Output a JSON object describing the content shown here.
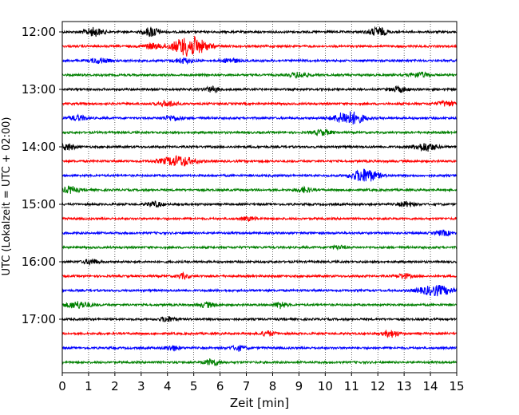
{
  "chart_data": {
    "type": "line",
    "title": "",
    "xlabel": "Zeit  [min]",
    "ylabel": "UTC (Lokalzeit = UTC + 02:00)",
    "xlim": [
      0,
      15
    ],
    "x_ticks": [
      "0",
      "1",
      "2",
      "3",
      "4",
      "5",
      "6",
      "7",
      "8",
      "9",
      "10",
      "11",
      "12",
      "13",
      "14",
      "15"
    ],
    "y_ticks": [
      "12:00",
      "13:00",
      "14:00",
      "15:00",
      "16:00",
      "17:00"
    ],
    "grid": "vertical-dotted",
    "colors": [
      "#000000",
      "#ff0000",
      "#0000ff",
      "#008000"
    ],
    "series": [
      {
        "start": "12:00",
        "color": "#000000",
        "bursts": [
          {
            "t": 1.2,
            "a": 5,
            "w": 0.5
          },
          {
            "t": 3.4,
            "a": 6,
            "w": 0.4
          },
          {
            "t": 12.0,
            "a": 5,
            "w": 0.5
          }
        ]
      },
      {
        "start": "12:15",
        "color": "#ff0000",
        "bursts": [
          {
            "t": 4.85,
            "a": 12,
            "w": 0.9
          },
          {
            "t": 3.4,
            "a": 3,
            "w": 0.5
          }
        ]
      },
      {
        "start": "12:30",
        "color": "#0000ff",
        "bursts": [
          {
            "t": 1.4,
            "a": 3,
            "w": 0.5
          },
          {
            "t": 4.6,
            "a": 3,
            "w": 0.5
          },
          {
            "t": 6.4,
            "a": 3,
            "w": 0.4
          }
        ]
      },
      {
        "start": "12:45",
        "color": "#008000",
        "bursts": [
          {
            "t": 9.0,
            "a": 3,
            "w": 0.5
          },
          {
            "t": 13.6,
            "a": 3,
            "w": 0.5
          }
        ]
      },
      {
        "start": "13:00",
        "color": "#000000",
        "bursts": [
          {
            "t": 5.7,
            "a": 3,
            "w": 0.4
          },
          {
            "t": 12.8,
            "a": 3,
            "w": 0.5
          }
        ]
      },
      {
        "start": "13:15",
        "color": "#ff0000",
        "bursts": [
          {
            "t": 4.0,
            "a": 3,
            "w": 0.5
          },
          {
            "t": 14.6,
            "a": 3,
            "w": 0.5
          }
        ]
      },
      {
        "start": "13:30",
        "color": "#0000ff",
        "bursts": [
          {
            "t": 10.9,
            "a": 8,
            "w": 0.8
          },
          {
            "t": 0.6,
            "a": 3,
            "w": 0.5
          },
          {
            "t": 4.2,
            "a": 3,
            "w": 0.5
          }
        ]
      },
      {
        "start": "13:45",
        "color": "#008000",
        "bursts": [
          {
            "t": 9.9,
            "a": 3,
            "w": 0.5
          }
        ]
      },
      {
        "start": "14:00",
        "color": "#000000",
        "bursts": [
          {
            "t": 0.2,
            "a": 4,
            "w": 0.4
          },
          {
            "t": 13.8,
            "a": 5,
            "w": 0.6
          }
        ]
      },
      {
        "start": "14:15",
        "color": "#ff0000",
        "bursts": [
          {
            "t": 4.4,
            "a": 6,
            "w": 0.9
          }
        ]
      },
      {
        "start": "14:30",
        "color": "#0000ff",
        "bursts": [
          {
            "t": 11.5,
            "a": 8,
            "w": 0.7
          }
        ]
      },
      {
        "start": "14:45",
        "color": "#008000",
        "bursts": [
          {
            "t": 0.3,
            "a": 4,
            "w": 0.4
          },
          {
            "t": 9.2,
            "a": 3,
            "w": 0.4
          }
        ]
      },
      {
        "start": "15:00",
        "color": "#000000",
        "bursts": [
          {
            "t": 3.5,
            "a": 3,
            "w": 0.4
          },
          {
            "t": 13.1,
            "a": 3,
            "w": 0.4
          }
        ]
      },
      {
        "start": "15:15",
        "color": "#ff0000",
        "bursts": [
          {
            "t": 7.1,
            "a": 2,
            "w": 0.4
          }
        ]
      },
      {
        "start": "15:30",
        "color": "#0000ff",
        "bursts": [
          {
            "t": 14.5,
            "a": 3,
            "w": 0.4
          }
        ]
      },
      {
        "start": "15:45",
        "color": "#008000",
        "bursts": [
          {
            "t": 10.5,
            "a": 2,
            "w": 0.4
          }
        ]
      },
      {
        "start": "16:00",
        "color": "#000000",
        "bursts": [
          {
            "t": 1.1,
            "a": 3,
            "w": 0.4
          }
        ]
      },
      {
        "start": "16:15",
        "color": "#ff0000",
        "bursts": [
          {
            "t": 4.6,
            "a": 3,
            "w": 0.3
          },
          {
            "t": 13.0,
            "a": 3,
            "w": 0.4
          }
        ]
      },
      {
        "start": "16:30",
        "color": "#0000ff",
        "bursts": [
          {
            "t": 14.2,
            "a": 6,
            "w": 0.9
          }
        ]
      },
      {
        "start": "16:45",
        "color": "#008000",
        "bursts": [
          {
            "t": 0.6,
            "a": 4,
            "w": 0.7
          },
          {
            "t": 5.5,
            "a": 3,
            "w": 0.4
          },
          {
            "t": 8.3,
            "a": 4,
            "w": 0.3
          }
        ]
      },
      {
        "start": "17:00",
        "color": "#000000",
        "bursts": [
          {
            "t": 4.0,
            "a": 3,
            "w": 0.4
          }
        ]
      },
      {
        "start": "17:15",
        "color": "#ff0000",
        "bursts": [
          {
            "t": 7.8,
            "a": 3,
            "w": 0.4
          },
          {
            "t": 12.5,
            "a": 4,
            "w": 0.4
          }
        ]
      },
      {
        "start": "17:30",
        "color": "#0000ff",
        "bursts": [
          {
            "t": 4.2,
            "a": 3,
            "w": 0.4
          },
          {
            "t": 6.7,
            "a": 3,
            "w": 0.4
          }
        ]
      },
      {
        "start": "17:45",
        "color": "#008000",
        "bursts": [
          {
            "t": 5.7,
            "a": 4,
            "w": 0.4
          }
        ]
      }
    ]
  }
}
